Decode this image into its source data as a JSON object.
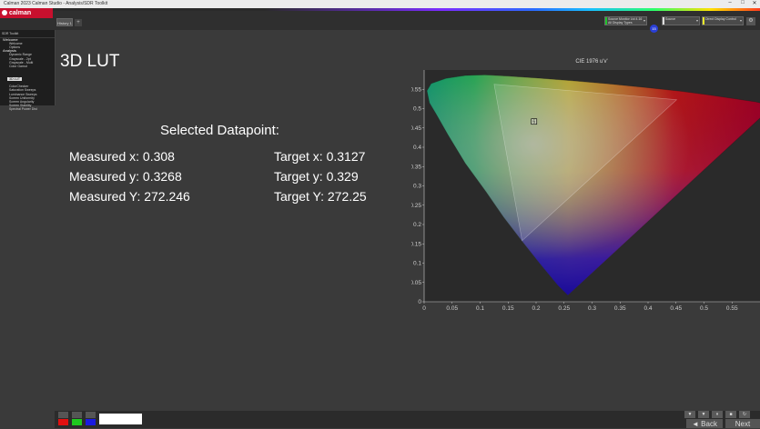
{
  "window": {
    "title": "Calman 2023 Calman Studio - Analysis/SDR Toolkit",
    "minimize": "–",
    "maximize": "□",
    "close": "✕"
  },
  "app": {
    "logo": "calman"
  },
  "tabs": [
    {
      "label": "History 1"
    }
  ],
  "tab_add": "+",
  "toolbar": {
    "source": {
      "line1": "Source Monitor Ltd 4.16",
      "line2": "All Display Types"
    },
    "badge": "15",
    "source2": {
      "line1": "Source",
      "line2": ""
    },
    "display": {
      "line1": "Direct Display Control",
      "line2": ""
    },
    "colors": {
      "green": "#22c22c",
      "white": "#dddddd",
      "yellow": "#e8e82a"
    }
  },
  "sidebar": {
    "header": "SDR Toolkit",
    "sections": [
      {
        "name": "Welcome",
        "items": [
          "Welcome",
          "Options"
        ]
      },
      {
        "name": "Analysis",
        "items": [
          "Dynamic Range",
          "Grayscale - 2pt",
          "Grayscale - Multi",
          "Color Gamut",
          "3D LUT",
          "ColorChecker",
          "Saturation Sweeps",
          "Luminance Sweeps",
          "Screen Uniformity",
          "Screen Angularity",
          "Screen Stability",
          "Spectral Power Dist"
        ]
      }
    ],
    "selected": "3D LUT"
  },
  "main": {
    "heading": "3D LUT",
    "datapoint_title": "Selected Datapoint:",
    "measured": {
      "x": "Measured x: 0.308",
      "y": "Measured y: 0.3268",
      "Y": "Measured Y: 272.246"
    },
    "target": {
      "x": "Target x: 0.3127",
      "y": "Target y: 0.329",
      "Y": "Target Y: 272.25"
    }
  },
  "chart_data": {
    "type": "scatter",
    "title": "CIE 1976 u'v'",
    "xlim": [
      0,
      0.6
    ],
    "ylim": [
      0,
      0.6
    ],
    "xticks": [
      "0",
      "0.05",
      "0.1",
      "0.15",
      "0.2",
      "0.25",
      "0.3",
      "0.35",
      "0.4",
      "0.45",
      "0.5",
      "0.55"
    ],
    "yticks": [
      "0",
      "0.05",
      "0.1",
      "0.15",
      "0.2",
      "0.25",
      "0.3",
      "0.35",
      "0.4",
      "0.45",
      "0.5",
      "0.55"
    ],
    "gamut_triangle": [
      {
        "u": 0.451,
        "v": 0.523
      },
      {
        "u": 0.125,
        "v": 0.563
      },
      {
        "u": 0.175,
        "v": 0.158
      }
    ],
    "measured_point": {
      "u": 0.1963,
      "v": 0.4666,
      "label": "6"
    }
  },
  "bottom": {
    "nav": {
      "back": "Back",
      "next": "Next"
    },
    "swatch_colors": [
      "#e01010",
      "#1ec81e",
      "#1a1ae0"
    ]
  }
}
